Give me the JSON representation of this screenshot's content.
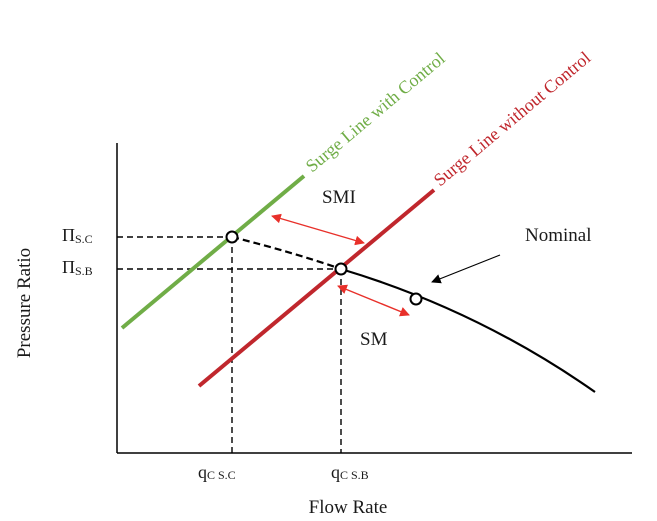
{
  "axes": {
    "x_label": "Flow Rate",
    "y_label": "Pressure Ratio"
  },
  "surge_lines": {
    "with_control": {
      "label": "Surge Line with Control",
      "color": "#70ad47"
    },
    "without_control": {
      "label": "Surge Line without Control",
      "color": "#c0272d"
    }
  },
  "curve": {
    "label": "Nominal",
    "color": "#000000"
  },
  "margins": {
    "smi_label": "SMI",
    "sm_label": "SM",
    "arrow_color": "#e8302a"
  },
  "y_ticks": {
    "pi_sc": {
      "main": "Π",
      "sub": "S.C"
    },
    "pi_sb": {
      "main": "Π",
      "sub": "S.B"
    }
  },
  "x_ticks": {
    "q_sc": {
      "main": "q",
      "sub": "C S.C"
    },
    "q_sb": {
      "main": "q",
      "sub": "C S.B"
    }
  }
}
